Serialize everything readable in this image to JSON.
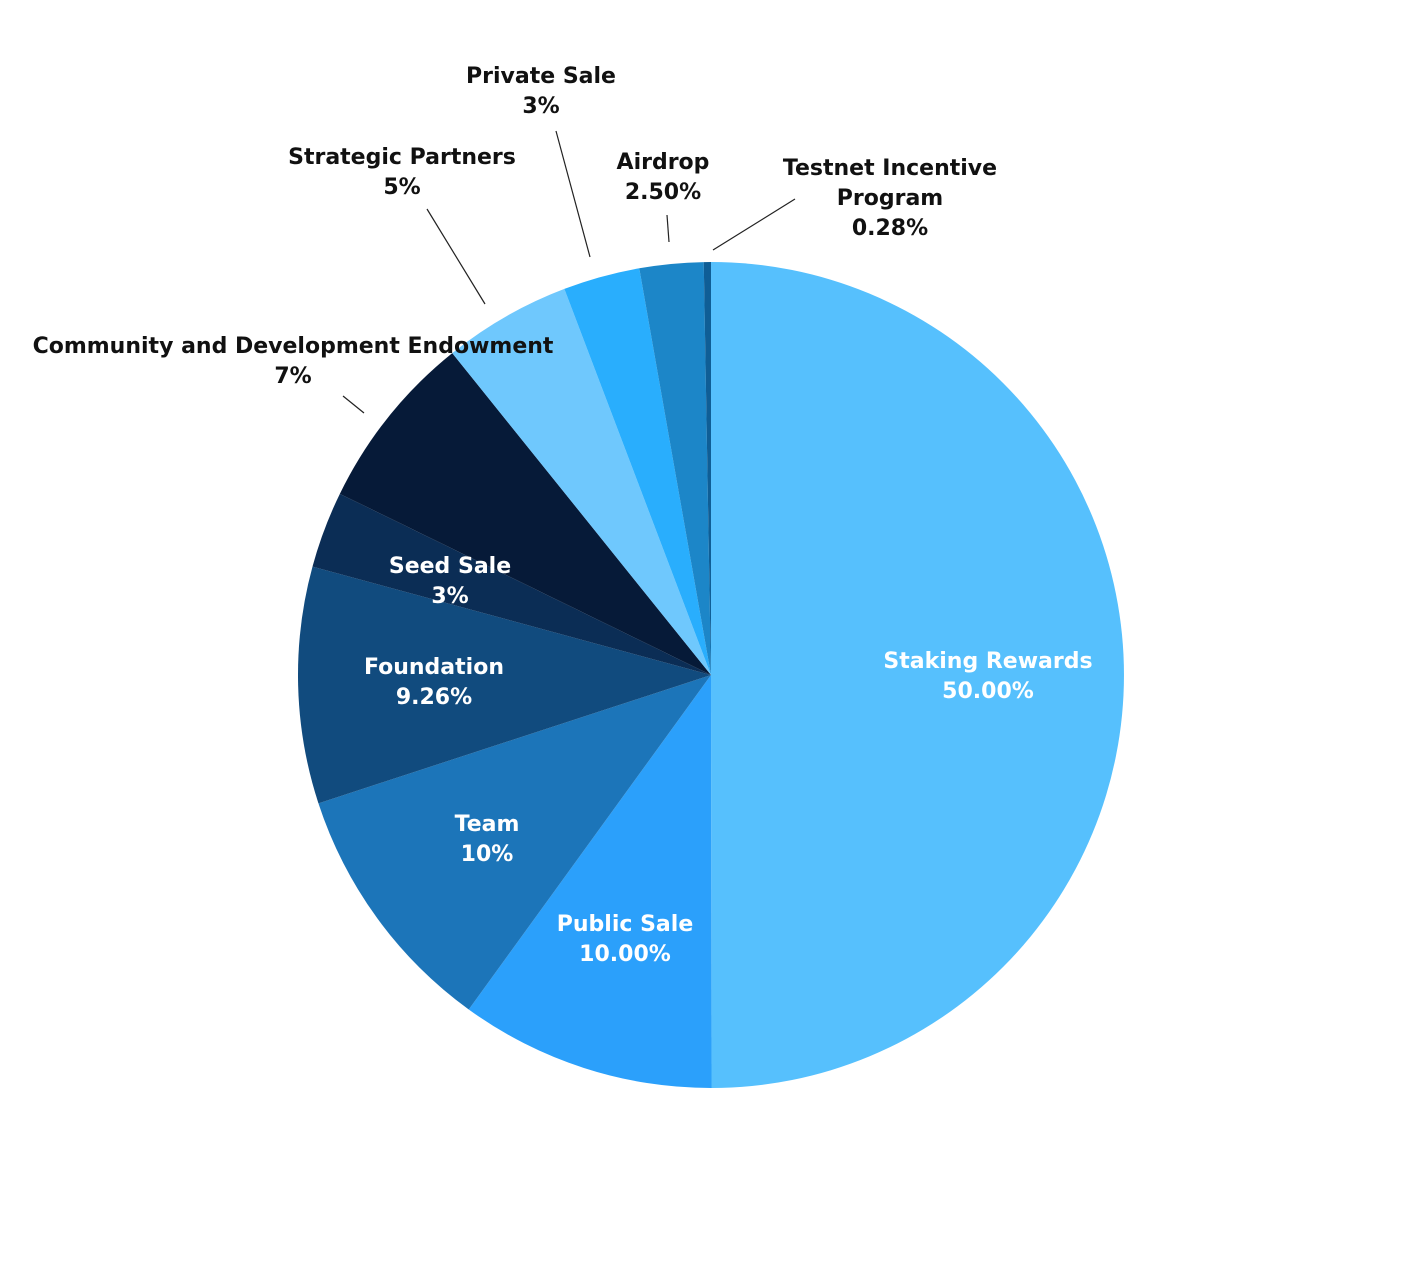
{
  "chart_data": {
    "type": "pie",
    "title": "",
    "start": "12 o'clock",
    "direction": "clockwise",
    "slices": [
      {
        "name": "Staking Rewards",
        "value": 50.0,
        "label": "50.00%",
        "color": "#56C0FD",
        "label_lines": [
          "Staking Rewards",
          "50.00%"
        ],
        "label_placement": "inside"
      },
      {
        "name": "Public Sale",
        "value": 10.0,
        "label": "10.00%",
        "color": "#2BA0FB",
        "label_lines": [
          "Public Sale",
          "10.00%"
        ],
        "label_placement": "inside"
      },
      {
        "name": "Team",
        "value": 10,
        "label": "10%",
        "color": "#1C75B9",
        "label_lines": [
          "Team",
          "10%"
        ],
        "label_placement": "inside"
      },
      {
        "name": "Foundation",
        "value": 9.26,
        "label": "9.26%",
        "color": "#114B7E",
        "label_lines": [
          "Foundation",
          "9.26%"
        ],
        "label_placement": "inside"
      },
      {
        "name": "Seed Sale",
        "value": 3,
        "label": "3%",
        "color": "#0B2D55",
        "label_lines": [
          "Seed Sale",
          "3%"
        ],
        "label_placement": "inside"
      },
      {
        "name": "Community and Development Endowment",
        "value": 7,
        "label": "7%",
        "color": "#061A38",
        "label_lines": [
          "Community and Development Endowment",
          "7%"
        ],
        "label_placement": "outside"
      },
      {
        "name": "Strategic Partners",
        "value": 5,
        "label": "5%",
        "color": "#6FC8FD",
        "label_lines": [
          "Strategic Partners",
          "5%"
        ],
        "label_placement": "outside"
      },
      {
        "name": "Private Sale",
        "value": 3,
        "label": "3%",
        "color": "#29AEFD",
        "label_lines": [
          "Private Sale",
          "3%"
        ],
        "label_placement": "outside"
      },
      {
        "name": "Airdrop",
        "value": 2.5,
        "label": "2.50%",
        "color": "#1C86C8",
        "label_lines": [
          "Airdrop",
          "2.50%"
        ],
        "label_placement": "outside"
      },
      {
        "name": "Testnet Incentive Program",
        "value": 0.28,
        "label": "0.28%",
        "color": "#0F5E96",
        "label_lines": [
          "Testnet Incentive",
          "Program",
          "0.28%"
        ],
        "label_placement": "outside"
      }
    ]
  }
}
